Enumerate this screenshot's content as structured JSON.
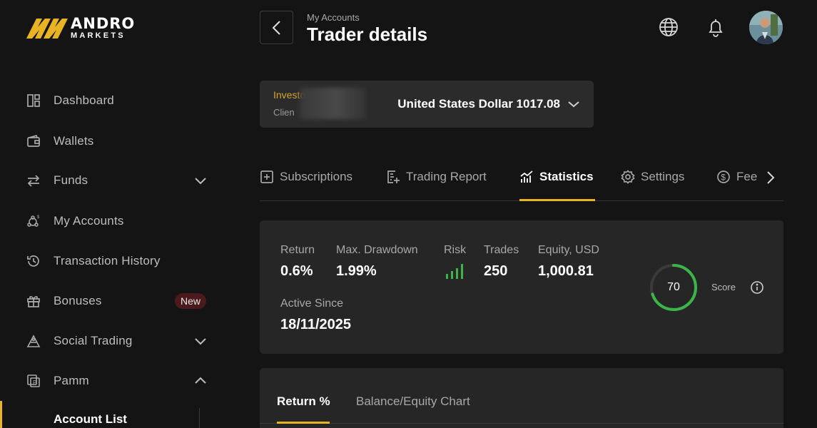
{
  "brand": {
    "name_top": "ANDRO",
    "name_bottom": "MARKETS",
    "accent": "#e8b423"
  },
  "sidebar": {
    "items": [
      {
        "label": "Dashboard",
        "icon": "dashboard-icon"
      },
      {
        "label": "Wallets",
        "icon": "wallet-icon"
      },
      {
        "label": "Funds",
        "icon": "swap-arrows-icon",
        "expandable": true,
        "expanded": false
      },
      {
        "label": "My Accounts",
        "icon": "accounts-icon"
      },
      {
        "label": "Transaction History",
        "icon": "history-icon"
      },
      {
        "label": "Bonuses",
        "icon": "gift-icon",
        "badge": "New"
      },
      {
        "label": "Social Trading",
        "icon": "social-trading-icon",
        "expandable": true,
        "expanded": false
      },
      {
        "label": "Pamm",
        "icon": "pamm-icon",
        "expandable": true,
        "expanded": true
      }
    ],
    "sub_items": [
      {
        "label": "Account List",
        "active": true
      }
    ]
  },
  "header": {
    "breadcrumb": "My Accounts",
    "title": "Trader details",
    "icons": [
      "back-arrow-icon",
      "globe-icon",
      "bell-icon",
      "avatar"
    ]
  },
  "account": {
    "type": "Investo",
    "id_prefix": "Clien",
    "currency_balance": "United States Dollar 1017.08"
  },
  "tabs": {
    "items": [
      {
        "label": "Subscriptions",
        "icon": "plus-square-icon"
      },
      {
        "label": "Trading Report",
        "icon": "report-icon"
      },
      {
        "label": "Statistics",
        "icon": "bar-chart-icon",
        "active": true
      },
      {
        "label": "Settings",
        "icon": "gear-icon"
      },
      {
        "label": "Fee",
        "icon": "dollar-circle-icon"
      }
    ]
  },
  "stats": {
    "return_label": "Return",
    "return_value": "0.6%",
    "drawdown_label": "Max. Drawdown",
    "drawdown_value": "1.99%",
    "risk_label": "Risk",
    "risk_level": 4,
    "risk_color": "#3bb54a",
    "trades_label": "Trades",
    "trades_value": "250",
    "equity_label": "Equity, USD",
    "equity_value": "1,000.81",
    "active_since_label": "Active Since",
    "active_since_value": "18/11/2025",
    "score_value": "70",
    "score_fraction": 0.7,
    "score_label": "Score",
    "score_color": "#3bb54a"
  },
  "chart_tabs": {
    "active": "Return %",
    "inactive": "Balance/Equity Chart"
  }
}
